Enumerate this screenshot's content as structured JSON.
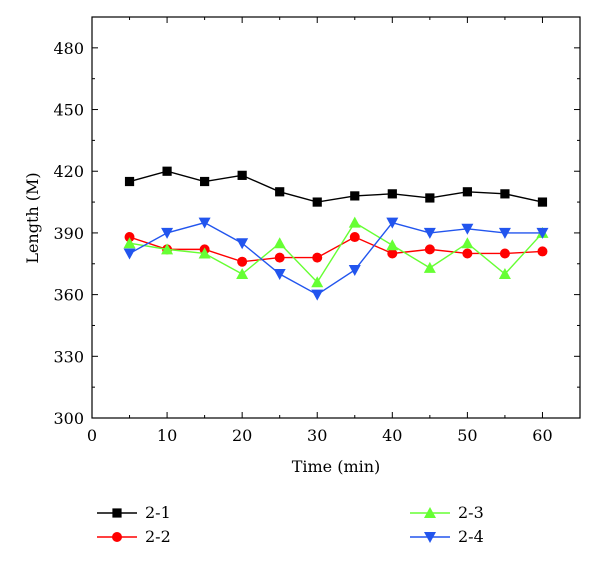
{
  "chart_data": {
    "type": "line",
    "xlabel": "Time (min)",
    "ylabel": "Length (M)",
    "xlim": [
      0,
      65
    ],
    "ylim": [
      300,
      495
    ],
    "x_ticks": [
      0,
      10,
      20,
      30,
      40,
      50,
      60
    ],
    "y_ticks": [
      300,
      330,
      360,
      390,
      420,
      450,
      480
    ],
    "x": [
      5,
      10,
      15,
      20,
      25,
      30,
      35,
      40,
      45,
      50,
      55,
      60
    ],
    "grid": false,
    "legend_position": "bottom",
    "series": [
      {
        "name": "2-1",
        "color": "#000000",
        "marker": "square",
        "values": [
          415,
          420,
          415,
          418,
          410,
          405,
          408,
          409,
          407,
          410,
          409,
          405
        ]
      },
      {
        "name": "2-2",
        "color": "#ff0000",
        "marker": "circle",
        "values": [
          388,
          382,
          382,
          376,
          378,
          378,
          388,
          380,
          382,
          380,
          380,
          381
        ]
      },
      {
        "name": "2-3",
        "color": "#66ff33",
        "marker": "triangle-up",
        "values": [
          385,
          382,
          380,
          370,
          385,
          366,
          395,
          384,
          373,
          385,
          370,
          390
        ]
      },
      {
        "name": "2-4",
        "color": "#2255ee",
        "marker": "triangle-down",
        "values": [
          380,
          390,
          395,
          385,
          370,
          360,
          372,
          395,
          390,
          392,
          390,
          390
        ]
      }
    ]
  }
}
